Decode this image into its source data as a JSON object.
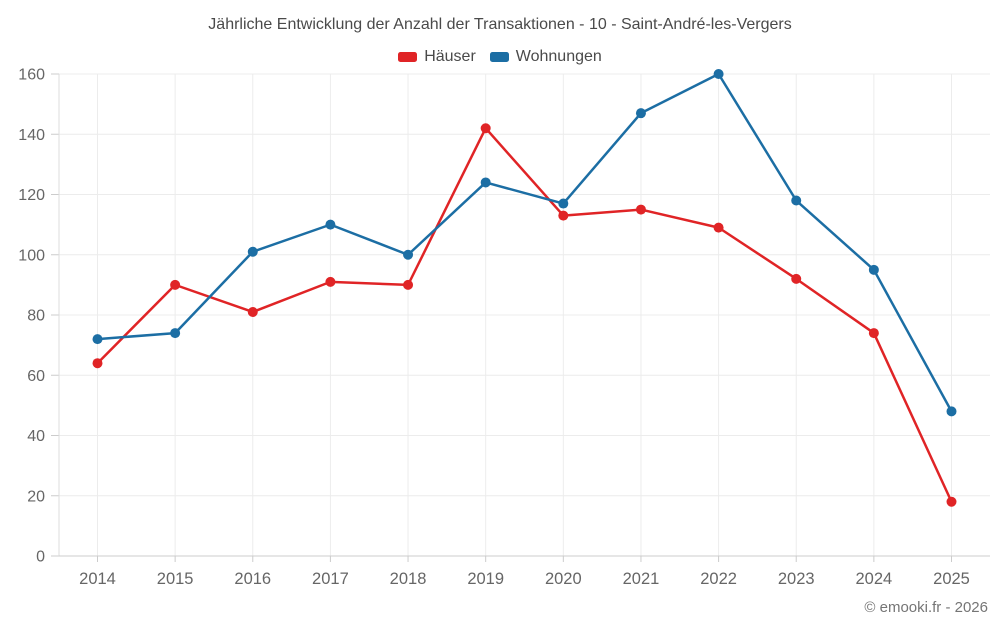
{
  "chart_data": {
    "type": "line",
    "title": "Jährliche Entwicklung der Anzahl der Transaktionen - 10 - Saint-André-les-Vergers",
    "categories": [
      "2014",
      "2015",
      "2016",
      "2017",
      "2018",
      "2019",
      "2020",
      "2021",
      "2022",
      "2023",
      "2024",
      "2025"
    ],
    "series": [
      {
        "name": "Häuser",
        "color": "#e02426",
        "values": [
          64,
          90,
          81,
          91,
          90,
          142,
          113,
          115,
          109,
          92,
          74,
          18
        ]
      },
      {
        "name": "Wohnungen",
        "color": "#1c6ea4",
        "values": [
          72,
          74,
          101,
          110,
          100,
          124,
          117,
          147,
          160,
          118,
          95,
          48
        ]
      }
    ],
    "xlabel": "",
    "ylabel": "",
    "ylim": [
      0,
      160
    ],
    "yticks": [
      0,
      20,
      40,
      60,
      80,
      100,
      120,
      140,
      160
    ],
    "grid": true,
    "legend_position": "top",
    "marker": "circle"
  },
  "footer": {
    "copyright": "© emooki.fr - 2026"
  },
  "colors": {
    "grid": "#ececec",
    "axis": "#cccccc",
    "y_axis_line": "#dddddd",
    "tick_label": "#666666",
    "title_text": "#4a4a4a",
    "footer_text": "#757575",
    "background": "#ffffff"
  }
}
